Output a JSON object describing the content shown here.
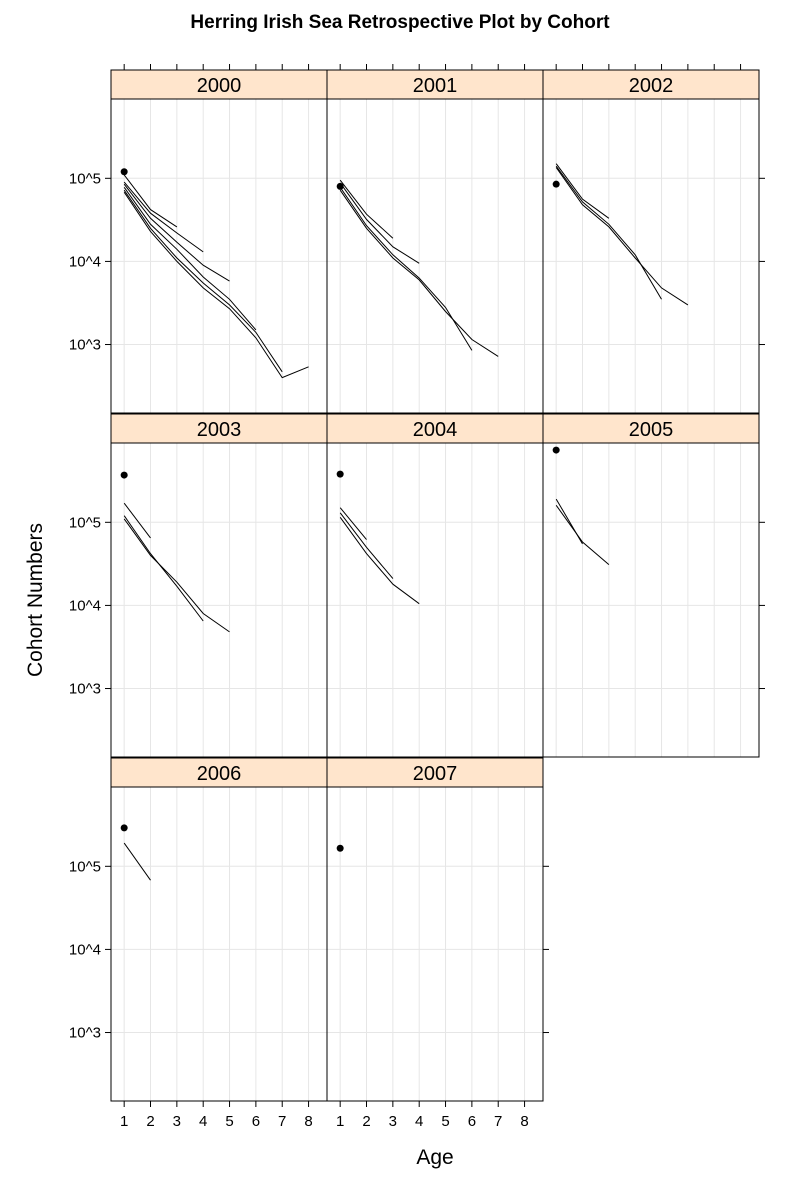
{
  "chart_data": {
    "type": "line",
    "title": "Herring Irish Sea Retrospective Plot by Cohort",
    "xlabel": "Age",
    "ylabel": "Cohort Numbers",
    "x_ticks": [
      1,
      2,
      3,
      4,
      5,
      6,
      7,
      8
    ],
    "y_scale": "log10",
    "y_ticks": [
      {
        "value": 1000,
        "label": "10^3"
      },
      {
        "value": 10000,
        "label": "10^4"
      },
      {
        "value": 100000,
        "label": "10^5"
      }
    ],
    "xlim": [
      0.5,
      8.7
    ],
    "ylim": [
      150,
      900000
    ],
    "grid": true,
    "panels": [
      {
        "label": "2000",
        "point": {
          "x": 1,
          "y": 120000
        },
        "series": [
          {
            "x": [
              1,
              2,
              3
            ],
            "y": [
              110000,
              42000,
              26000
            ]
          },
          {
            "x": [
              1,
              2,
              3,
              4
            ],
            "y": [
              90000,
              38000,
              22000,
              13000
            ]
          },
          {
            "x": [
              1,
              2,
              3,
              4,
              5
            ],
            "y": [
              85000,
              33000,
              17000,
              9000,
              5800
            ]
          },
          {
            "x": [
              1,
              2,
              3,
              4,
              5,
              6
            ],
            "y": [
              78000,
              28000,
              14000,
              6500,
              3500,
              1500
            ]
          },
          {
            "x": [
              1,
              2,
              3,
              4,
              5,
              6,
              7
            ],
            "y": [
              72000,
              25000,
              11000,
              5500,
              3000,
              1400,
              470
            ]
          },
          {
            "x": [
              1,
              2,
              3,
              4,
              5,
              6,
              7,
              8
            ],
            "y": [
              68000,
              23000,
              10000,
              4800,
              2700,
              1200,
              400,
              540
            ]
          }
        ]
      },
      {
        "label": "2001",
        "point": {
          "x": 1,
          "y": 80000
        },
        "series": [
          {
            "x": [
              1,
              2,
              3
            ],
            "y": [
              95000,
              37000,
              19000
            ]
          },
          {
            "x": [
              1,
              2,
              3,
              4
            ],
            "y": [
              88000,
              32000,
              15000,
              9500
            ]
          },
          {
            "x": [
              1,
              2,
              3,
              4,
              5,
              6
            ],
            "y": [
              78000,
              27000,
              12000,
              6300,
              2800,
              850
            ]
          },
          {
            "x": [
              1,
              2,
              3,
              4,
              5,
              6,
              7
            ],
            "y": [
              72000,
              25000,
              11000,
              6000,
              2500,
              1150,
              720
            ]
          }
        ]
      },
      {
        "label": "2002",
        "point": {
          "x": 1,
          "y": 85000
        },
        "series": [
          {
            "x": [
              1,
              2,
              3
            ],
            "y": [
              150000,
              56000,
              33000
            ]
          },
          {
            "x": [
              1,
              2,
              3,
              4,
              5
            ],
            "y": [
              140000,
              52000,
              28000,
              12000,
              3500
            ]
          },
          {
            "x": [
              1,
              2,
              3,
              4,
              5,
              6
            ],
            "y": [
              135000,
              48000,
              26000,
              11000,
              4800,
              3000
            ]
          }
        ]
      },
      {
        "label": "2003",
        "point": {
          "x": 1,
          "y": 370000
        },
        "series": [
          {
            "x": [
              1,
              2
            ],
            "y": [
              170000,
              65000
            ]
          },
          {
            "x": [
              1,
              2,
              3,
              4
            ],
            "y": [
              120000,
              42000,
              17000,
              6500
            ]
          },
          {
            "x": [
              1,
              2,
              3,
              4,
              5
            ],
            "y": [
              110000,
              40000,
              19000,
              8000,
              4800
            ]
          }
        ]
      },
      {
        "label": "2004",
        "point": {
          "x": 1,
          "y": 380000
        },
        "series": [
          {
            "x": [
              1,
              2
            ],
            "y": [
              150000,
              62000
            ]
          },
          {
            "x": [
              1,
              2,
              3
            ],
            "y": [
              130000,
              50000,
              21000
            ]
          },
          {
            "x": [
              1,
              2,
              3,
              4
            ],
            "y": [
              115000,
              42000,
              18000,
              10500
            ]
          }
        ]
      },
      {
        "label": "2005",
        "point": {
          "x": 1,
          "y": 740000
        },
        "series": [
          {
            "x": [
              1,
              2
            ],
            "y": [
              190000,
              55000
            ]
          },
          {
            "x": [
              1,
              2,
              3
            ],
            "y": [
              160000,
              58000,
              31000
            ]
          }
        ]
      },
      {
        "label": "2006",
        "point": {
          "x": 1,
          "y": 290000
        },
        "series": [
          {
            "x": [
              1,
              2
            ],
            "y": [
              190000,
              68000
            ]
          }
        ]
      },
      {
        "label": "2007",
        "point": {
          "x": 1,
          "y": 165000
        },
        "series": []
      }
    ]
  }
}
